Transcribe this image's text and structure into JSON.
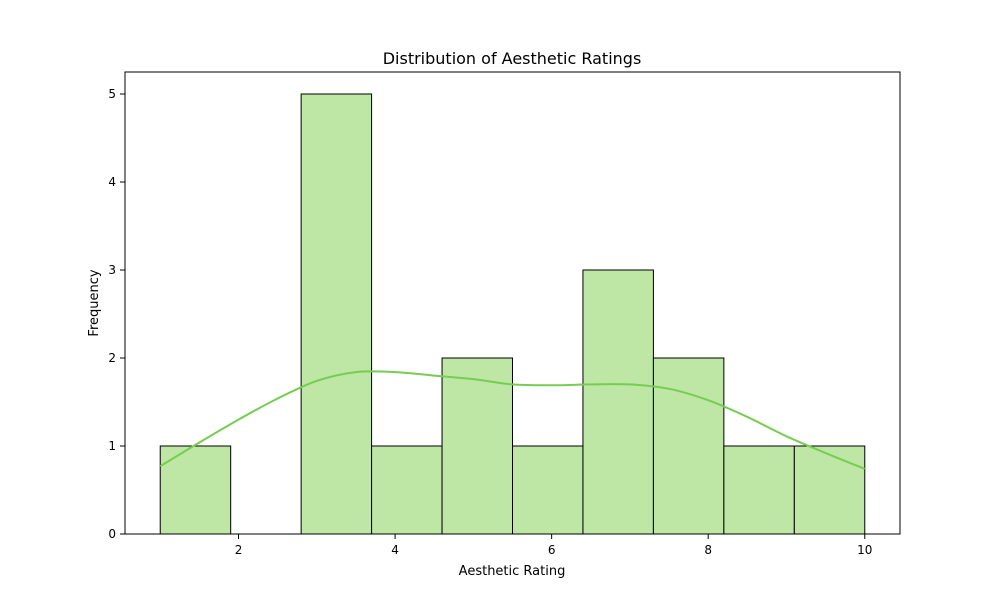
{
  "chart_data": {
    "type": "bar",
    "title": "Distribution of Aesthetic Ratings",
    "xlabel": "Aesthetic Rating",
    "ylabel": "Frequency",
    "xlim": [
      0.55,
      10.45
    ],
    "ylim": [
      0,
      5.25
    ],
    "x_ticks": [
      2,
      4,
      6,
      8,
      10
    ],
    "y_ticks": [
      0,
      1,
      2,
      3,
      4,
      5
    ],
    "bins": [
      {
        "start": 1.0,
        "end": 1.9,
        "count": 1
      },
      {
        "start": 1.9,
        "end": 2.8,
        "count": 0
      },
      {
        "start": 2.8,
        "end": 3.7,
        "count": 5
      },
      {
        "start": 3.7,
        "end": 4.6,
        "count": 1
      },
      {
        "start": 4.6,
        "end": 5.5,
        "count": 2
      },
      {
        "start": 5.5,
        "end": 6.4,
        "count": 1
      },
      {
        "start": 6.4,
        "end": 7.3,
        "count": 3
      },
      {
        "start": 7.3,
        "end": 8.2,
        "count": 2
      },
      {
        "start": 8.2,
        "end": 9.1,
        "count": 1
      },
      {
        "start": 9.1,
        "end": 10.0,
        "count": 1
      }
    ],
    "kde": {
      "x": [
        1.0,
        1.5,
        2.0,
        2.5,
        3.0,
        3.5,
        4.0,
        4.5,
        5.0,
        5.5,
        6.0,
        6.5,
        7.0,
        7.5,
        8.0,
        8.5,
        9.0,
        9.5,
        10.0
      ],
      "y": [
        0.77,
        1.04,
        1.3,
        1.54,
        1.74,
        1.84,
        1.84,
        1.8,
        1.76,
        1.7,
        1.69,
        1.7,
        1.7,
        1.65,
        1.52,
        1.33,
        1.11,
        0.92,
        0.74
      ]
    },
    "bar_fill": "#bee7a5",
    "bar_edge": "#000000",
    "kde_color": "#77cc52",
    "grid": false,
    "legend": "none"
  }
}
